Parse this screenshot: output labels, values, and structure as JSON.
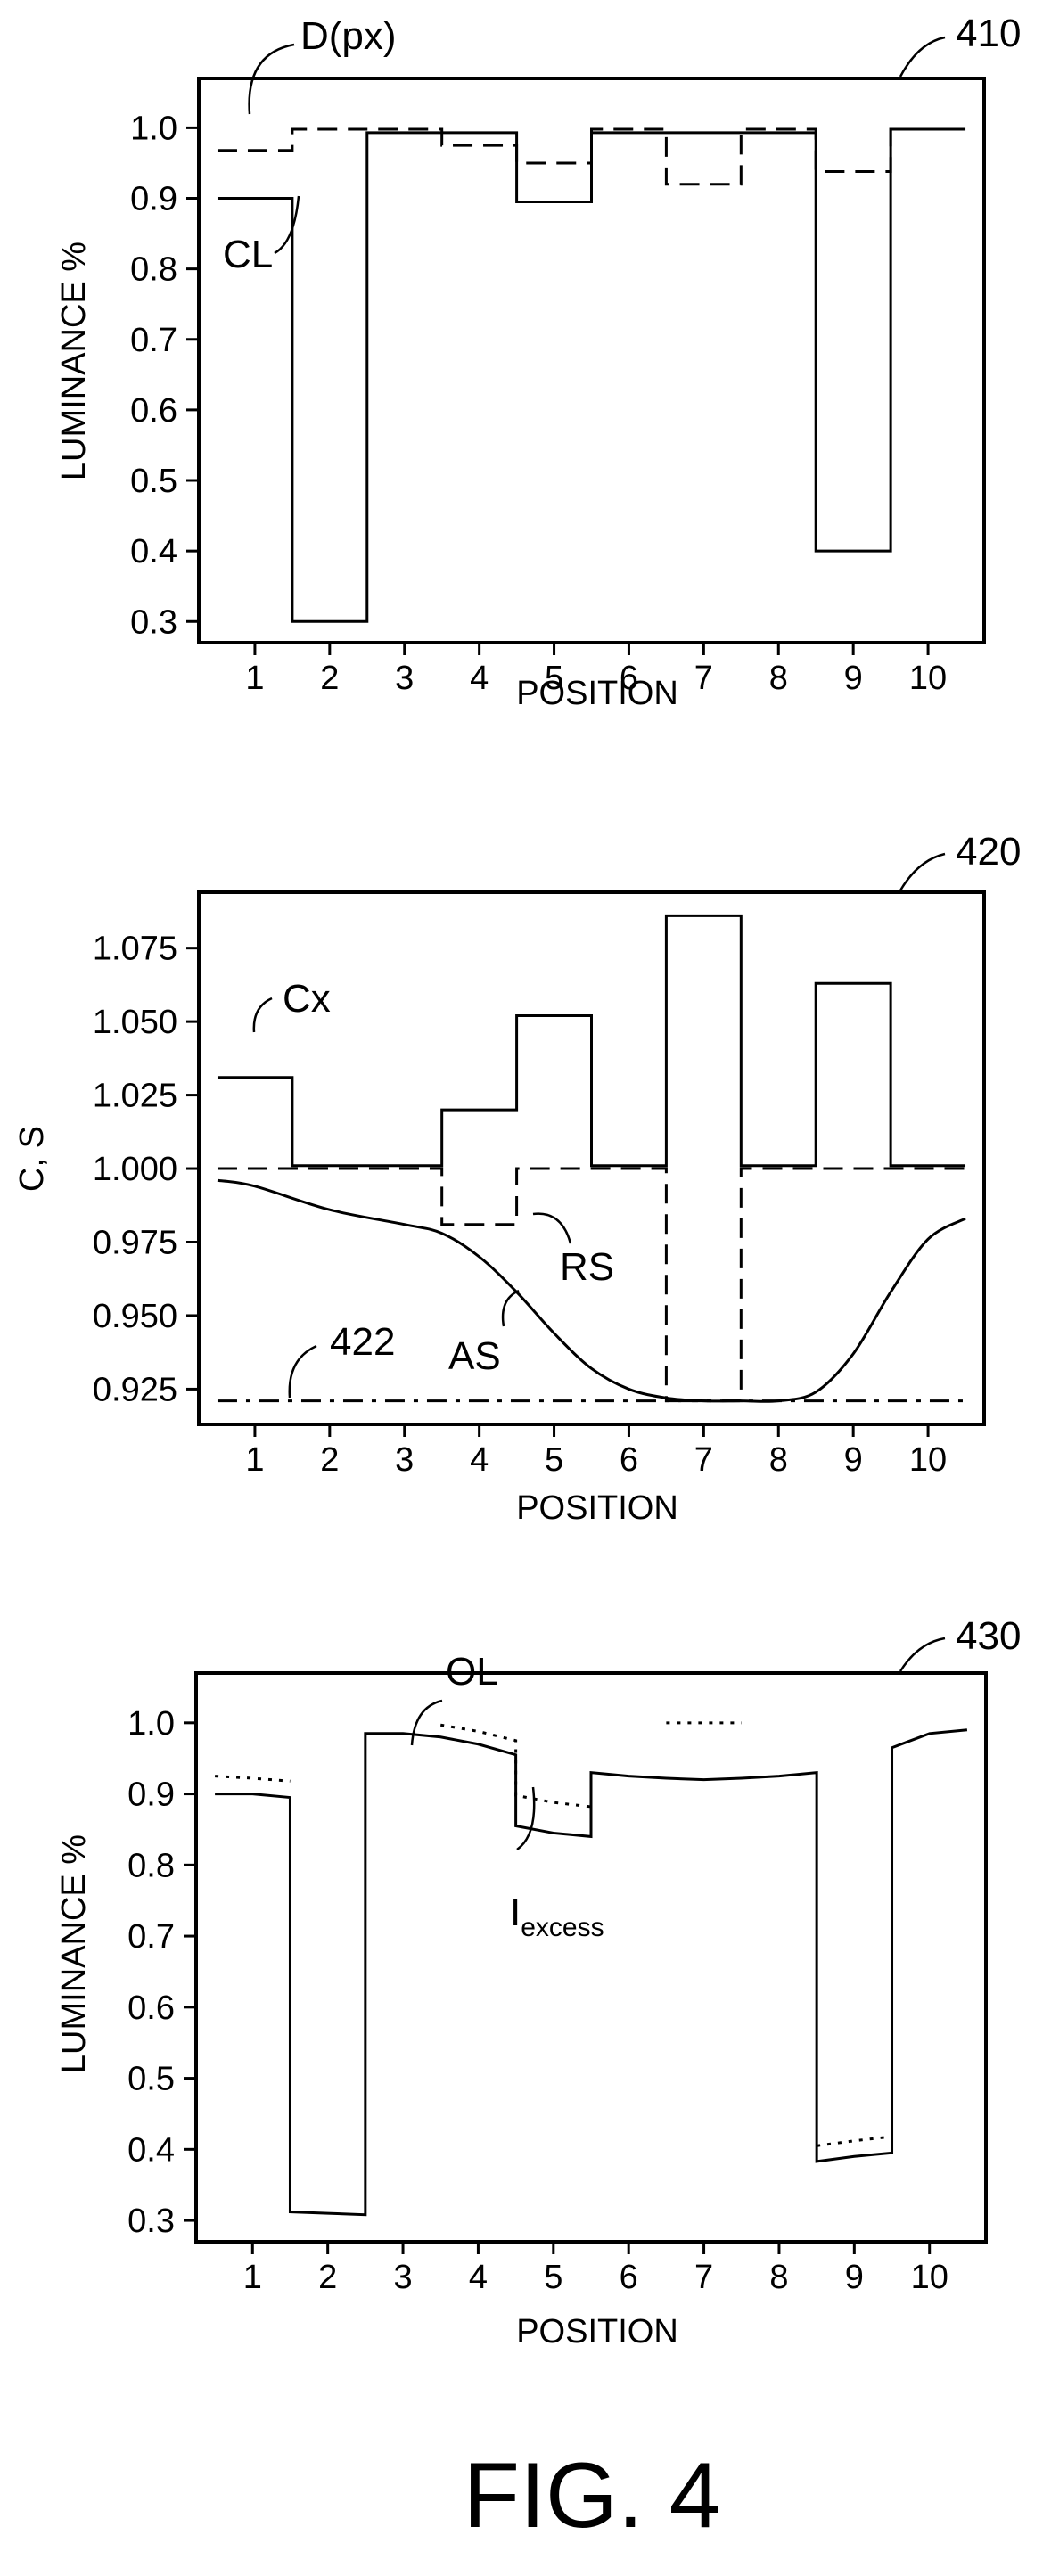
{
  "figure": {
    "label": "FIG. 4"
  },
  "chart_data": [
    {
      "ref": "410",
      "type": "line",
      "xlabel": "POSITION",
      "ylabel": "LUMINANCE %",
      "x_ticks": [
        "1",
        "2",
        "3",
        "4",
        "5",
        "6",
        "7",
        "8",
        "9",
        "10"
      ],
      "xlim": [
        0.25,
        10.75
      ],
      "y_ticks": [
        "0.3",
        "0.4",
        "0.5",
        "0.6",
        "0.7",
        "0.8",
        "0.9",
        "1.0"
      ],
      "ylim": [
        0.27,
        1.07
      ],
      "grid": false,
      "series": [
        {
          "name": "CL",
          "style": "solid",
          "step": true,
          "x": [
            1,
            2,
            3,
            4,
            5,
            6,
            7,
            8,
            9,
            10
          ],
          "values": [
            0.9,
            0.3,
            0.993,
            0.993,
            0.895,
            0.993,
            0.993,
            0.993,
            0.4,
            0.998
          ]
        },
        {
          "name": "D(px)",
          "style": "dashed",
          "step": true,
          "x": [
            1,
            2,
            3,
            4,
            5,
            6,
            7,
            8,
            9,
            10
          ],
          "values": [
            0.968,
            0.998,
            0.998,
            0.975,
            0.95,
            0.998,
            0.92,
            0.998,
            0.938,
            0.998
          ]
        }
      ],
      "annotations": [
        "410",
        "D(px)",
        "CL"
      ]
    },
    {
      "ref": "420",
      "type": "line",
      "xlabel": "POSITION",
      "ylabel": "C, S",
      "x_ticks": [
        "1",
        "2",
        "3",
        "4",
        "5",
        "6",
        "7",
        "8",
        "9",
        "10"
      ],
      "xlim": [
        0.25,
        10.75
      ],
      "y_ticks": [
        "0.925",
        "0.950",
        "0.975",
        "1.000",
        "1.025",
        "1.050",
        "1.075"
      ],
      "ylim": [
        0.913,
        1.094
      ],
      "grid": false,
      "series": [
        {
          "name": "Cx",
          "style": "solid",
          "step": true,
          "x": [
            1,
            2,
            3,
            4,
            5,
            6,
            7,
            8,
            9,
            10
          ],
          "values": [
            1.031,
            1.001,
            1.001,
            1.02,
            1.052,
            1.001,
            1.086,
            1.001,
            1.063,
            1.001
          ]
        },
        {
          "name": "RS",
          "style": "dashed",
          "step": true,
          "x": [
            1,
            2,
            3,
            4,
            5,
            6,
            7,
            8,
            9,
            10
          ],
          "values": [
            1.0,
            1.0,
            1.0,
            0.981,
            1.0,
            1.0,
            0.921,
            1.0,
            1.0,
            1.0
          ]
        },
        {
          "name": "AS",
          "style": "solid",
          "step": false,
          "x": [
            0.5,
            1,
            2,
            3,
            3.5,
            4,
            4.5,
            5,
            5.5,
            6,
            6.5,
            7,
            7.5,
            8,
            8.5,
            9,
            9.5,
            10,
            10.5
          ],
          "values": [
            0.996,
            0.994,
            0.986,
            0.981,
            0.978,
            0.97,
            0.958,
            0.944,
            0.932,
            0.925,
            0.922,
            0.921,
            0.921,
            0.921,
            0.924,
            0.937,
            0.958,
            0.976,
            0.983
          ]
        },
        {
          "name": "422",
          "style": "dashdot",
          "step": false,
          "x": [
            0.5,
            10.5
          ],
          "values": [
            0.921,
            0.921
          ]
        }
      ],
      "annotations": [
        "420",
        "Cx",
        "RS",
        "AS",
        "422"
      ]
    },
    {
      "ref": "430",
      "type": "line",
      "xlabel": "POSITION",
      "ylabel": "LUMINANCE %",
      "x_ticks": [
        "1",
        "2",
        "3",
        "4",
        "5",
        "6",
        "7",
        "8",
        "9",
        "10"
      ],
      "xlim": [
        0.25,
        10.75
      ],
      "y_ticks": [
        "0.3",
        "0.4",
        "0.5",
        "0.6",
        "0.7",
        "0.8",
        "0.9",
        "1.0"
      ],
      "ylim": [
        0.27,
        1.07
      ],
      "grid": false,
      "series": [
        {
          "name": "OL",
          "style": "solid",
          "step": false,
          "segments": [
            {
              "x": [
                0.5,
                1,
                1.5
              ],
              "values": [
                0.9,
                0.9,
                0.895
              ]
            },
            {
              "x": [
                1.5,
                2,
                2.5
              ],
              "values": [
                0.312,
                0.31,
                0.308
              ]
            },
            {
              "x": [
                2.5,
                3,
                3.5,
                4,
                4.5
              ],
              "values": [
                0.985,
                0.985,
                0.98,
                0.97,
                0.955
              ]
            },
            {
              "x": [
                4.5,
                5,
                5.5
              ],
              "values": [
                0.855,
                0.845,
                0.84
              ]
            },
            {
              "x": [
                5.5,
                6,
                6.5,
                7,
                7.5,
                8,
                8.5
              ],
              "values": [
                0.93,
                0.925,
                0.922,
                0.92,
                0.922,
                0.925,
                0.93
              ]
            },
            {
              "x": [
                8.5,
                9,
                9.5
              ],
              "values": [
                0.383,
                0.39,
                0.395
              ]
            },
            {
              "x": [
                9.5,
                10,
                10.5
              ],
              "values": [
                0.965,
                0.985,
                0.99
              ]
            }
          ]
        },
        {
          "name": "I_excess",
          "style": "dotted",
          "step": false,
          "segments": [
            {
              "x": [
                0.5,
                1,
                1.5
              ],
              "values": [
                0.925,
                0.922,
                0.918
              ]
            },
            {
              "x": [
                3.5,
                4,
                4.5
              ],
              "values": [
                0.997,
                0.988,
                0.975
              ]
            },
            {
              "x": [
                4.5,
                5,
                5.5
              ],
              "values": [
                0.898,
                0.888,
                0.882
              ]
            },
            {
              "x": [
                6.5,
                7,
                7.5
              ],
              "values": [
                1.0,
                1.0,
                1.0
              ]
            },
            {
              "x": [
                8.5,
                9,
                9.5
              ],
              "values": [
                0.405,
                0.412,
                0.418
              ]
            }
          ]
        }
      ],
      "annotations": [
        "430",
        "OL",
        "I",
        "excess"
      ]
    }
  ]
}
